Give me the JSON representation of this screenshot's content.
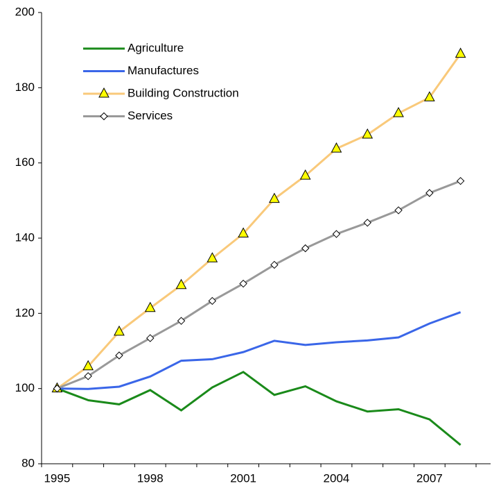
{
  "chart_data": {
    "type": "line",
    "categories": [
      "1995",
      null,
      null,
      "1998",
      null,
      null,
      "2001",
      null,
      null,
      "2004",
      null,
      null,
      "2007",
      null
    ],
    "series": [
      {
        "name": "Agriculture",
        "color": "#1a8a1a",
        "marker": "none",
        "values": [
          100,
          96.9,
          95.8,
          99.6,
          94.2,
          100.3,
          104.4,
          98.3,
          100.6,
          96.6,
          93.9,
          94.5,
          91.8,
          85.0
        ]
      },
      {
        "name": "Manufactures",
        "color": "#3a66e8",
        "marker": "none",
        "values": [
          100,
          99.9,
          100.5,
          103.2,
          107.4,
          107.8,
          109.7,
          112.7,
          111.6,
          112.3,
          112.8,
          113.6,
          117.3,
          120.3
        ]
      },
      {
        "name": "Building Construction",
        "color": "#f9c97a",
        "marker": "triangle",
        "values": [
          100,
          105.9,
          115.1,
          121.4,
          127.5,
          134.6,
          141.2,
          150.4,
          156.6,
          163.8,
          167.5,
          173.2,
          177.4,
          189.0
        ]
      },
      {
        "name": "Services",
        "color": "#999999",
        "marker": "diamond",
        "values": [
          100,
          103.3,
          108.8,
          113.4,
          118.0,
          123.3,
          127.9,
          132.9,
          137.3,
          141.1,
          144.1,
          147.4,
          152.0,
          155.2
        ]
      }
    ],
    "ylim": [
      80,
      200
    ],
    "yticks": [
      80,
      100,
      120,
      140,
      160,
      180,
      200
    ],
    "grid": false
  }
}
